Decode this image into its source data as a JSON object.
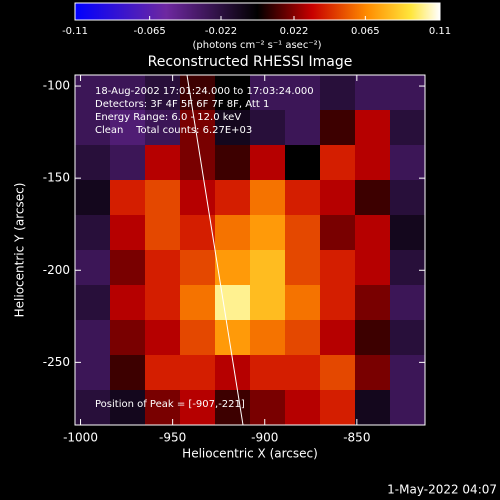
{
  "chart_data": {
    "type": "heatmap",
    "title": "Reconstructed RHESSI Image",
    "x_label": "Heliocentric X (arcsec)",
    "y_label": "Heliocentric Y (arcsec)",
    "colorbar_label": "(photons cm⁻² s⁻¹ asec⁻²)",
    "annotations": [
      "18-Aug-2002 17:01:24.000 to 17:03:24.000",
      "Detectors: 3F 4F 5F 6F 7F 8F, Att 1",
      "Energy Range: 6.0 - 12.0 keV",
      "Clean    Total counts: 6.27E+03"
    ],
    "peak_label": "Position of Peak = [-907,-221]",
    "footer": "1-May-2022 04:07",
    "x": [
      -993.5,
      -974.5,
      -955.5,
      -936.5,
      -917.5,
      -898.5,
      -879.5,
      -860.5,
      -841.5,
      -822.5
    ],
    "y": [
      -103.5,
      -122.5,
      -141.5,
      -160.5,
      -179.5,
      -198.5,
      -217.5,
      -236.5,
      -255.5,
      -274.5
    ],
    "values": [
      [
        -0.03,
        -0.03,
        -0.02,
        0.01,
        0.0,
        -0.03,
        -0.03,
        -0.02,
        -0.03,
        -0.03
      ],
      [
        -0.03,
        -0.04,
        -0.03,
        0.02,
        -0.01,
        -0.02,
        -0.03,
        0.01,
        0.03,
        -0.02
      ],
      [
        -0.02,
        -0.03,
        0.03,
        0.02,
        0.01,
        0.03,
        0.0,
        0.04,
        0.03,
        -0.03
      ],
      [
        -0.01,
        0.04,
        0.05,
        0.03,
        0.04,
        0.06,
        0.04,
        0.03,
        0.01,
        -0.02
      ],
      [
        -0.02,
        0.03,
        0.05,
        0.04,
        0.06,
        0.07,
        0.05,
        0.02,
        0.03,
        -0.01
      ],
      [
        -0.03,
        0.02,
        0.04,
        0.05,
        0.07,
        0.08,
        0.05,
        0.04,
        0.03,
        -0.02
      ],
      [
        -0.02,
        0.03,
        0.04,
        0.06,
        0.1,
        0.08,
        0.06,
        0.04,
        0.02,
        -0.03
      ],
      [
        -0.03,
        0.02,
        0.03,
        0.05,
        0.07,
        0.06,
        0.05,
        0.03,
        0.01,
        -0.02
      ],
      [
        -0.03,
        0.01,
        0.04,
        0.04,
        0.03,
        0.04,
        0.04,
        0.05,
        0.02,
        -0.03
      ],
      [
        -0.02,
        -0.01,
        0.02,
        0.03,
        0.01,
        0.02,
        0.03,
        0.04,
        -0.01,
        -0.03
      ]
    ],
    "xlim": [
      -1003,
      -813
    ],
    "ylim": [
      -284,
      -94
    ],
    "xticks": [
      -1000,
      -950,
      -900,
      -850
    ],
    "yticks": [
      -100,
      -150,
      -200,
      -250
    ],
    "clim": [
      -0.11,
      0.11
    ],
    "cticks": [
      -0.11,
      -0.065,
      -0.022,
      0.022,
      0.065,
      0.11
    ]
  }
}
